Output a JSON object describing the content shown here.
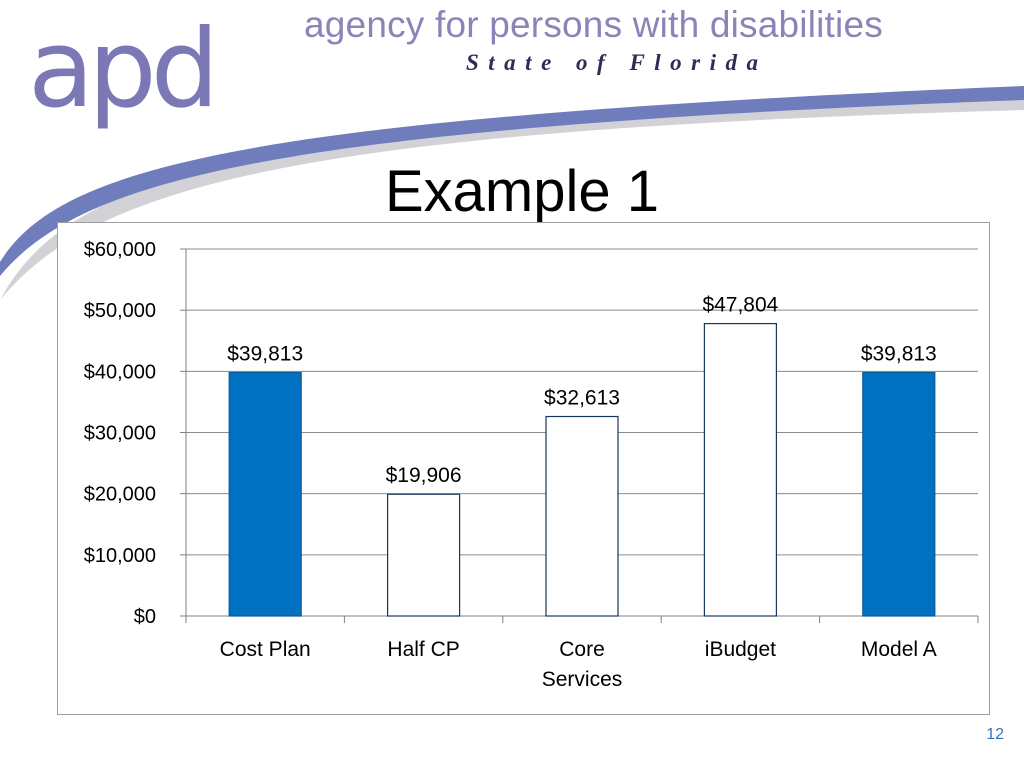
{
  "header": {
    "logo_text": "apd",
    "agency_name": "agency for persons with disabilities",
    "state_line": "State of Florida"
  },
  "slide": {
    "title": "Example 1",
    "page_number": "12"
  },
  "colors": {
    "filled_bar": "#0070c0",
    "outline_bar": "#17375e",
    "logo_light": "#7c78b5",
    "logo_dark": "#4a2d5c",
    "swoosh": "#6f7dbd",
    "accent_text": "#3c6fc1"
  },
  "chart_data": {
    "type": "bar",
    "title": "",
    "xlabel": "",
    "ylabel": "",
    "categories": [
      "Cost Plan",
      "Half CP",
      "Core Services",
      "iBudget",
      "Model A"
    ],
    "category_lines": [
      [
        "Cost Plan"
      ],
      [
        "Half CP"
      ],
      [
        "Core",
        "Services"
      ],
      [
        "iBudget"
      ],
      [
        "Model A"
      ]
    ],
    "values": [
      39813,
      19906,
      32613,
      47804,
      39813
    ],
    "data_labels": [
      "$39,813",
      "$19,906",
      "$32,613",
      "$47,804",
      "$39,813"
    ],
    "bar_styles": [
      "filled",
      "outline",
      "outline",
      "outline",
      "filled"
    ],
    "ylim": [
      0,
      60000
    ],
    "yticks": [
      0,
      10000,
      20000,
      30000,
      40000,
      50000,
      60000
    ],
    "ytick_labels": [
      "$0",
      "$10,000",
      "$20,000",
      "$30,000",
      "$40,000",
      "$50,000",
      "$60,000"
    ],
    "grid": true,
    "legend": "none"
  }
}
